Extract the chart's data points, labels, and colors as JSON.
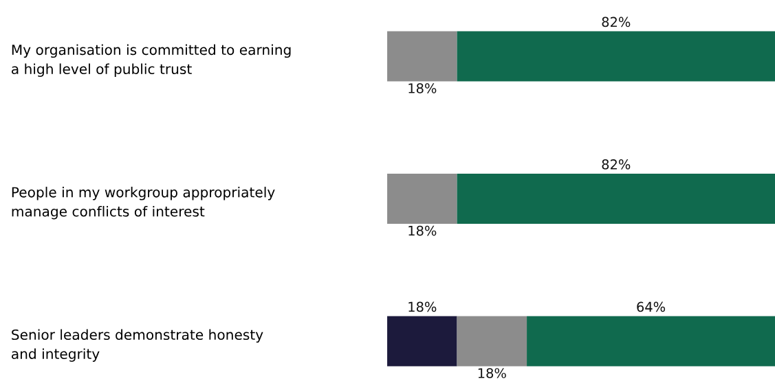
{
  "chart_data": {
    "type": "bar",
    "orientation": "horizontal",
    "stacked": true,
    "tick_labels": "y",
    "categories": [
      "My organisation is committed to earning\na high level of public trust",
      "People in my workgroup appropriately\nmanage conflicts of interest",
      "Senior leaders demonstrate honesty\nand integrity"
    ],
    "series": [
      {
        "color": "#1c1a3c",
        "values": [
          null,
          null,
          18
        ],
        "value_labels": [
          null,
          null,
          "18%"
        ]
      },
      {
        "color": "#8c8c8c",
        "values": [
          18,
          18,
          18
        ],
        "value_labels": [
          "18%",
          "18%",
          "18%"
        ]
      },
      {
        "color": "#106a4e",
        "values": [
          82,
          82,
          64
        ],
        "value_labels": [
          "82%",
          "82%",
          "64%"
        ]
      }
    ]
  }
}
